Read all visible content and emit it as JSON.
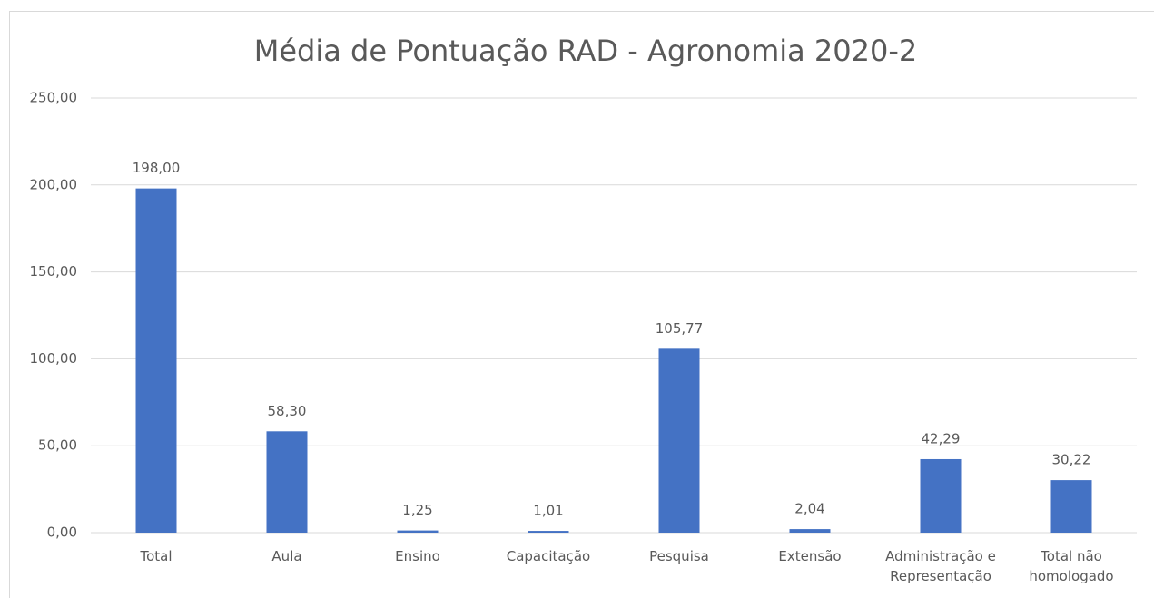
{
  "chart_data": {
    "type": "bar",
    "title": "Média de Pontuação RAD - Agronomia 2020-2",
    "categories": [
      "Total",
      "Aula",
      "Ensino",
      "Capacitação",
      "Pesquisa",
      "Extensão",
      "Administração e Representação",
      "Total não homologado"
    ],
    "values": [
      198.0,
      58.3,
      1.25,
      1.01,
      105.77,
      2.04,
      42.29,
      30.22
    ],
    "value_labels": [
      "198,00",
      "58,30",
      "1,25",
      "1,01",
      "105,77",
      "2,04",
      "42,29",
      "30,22"
    ],
    "color": "#4472c4",
    "ylim": [
      0,
      250
    ],
    "yticks": [
      {
        "value": 0,
        "label": "0,00"
      },
      {
        "value": 50,
        "label": "50,00"
      },
      {
        "value": 100,
        "label": "100,00"
      },
      {
        "value": 150,
        "label": "150,00"
      },
      {
        "value": 200,
        "label": "200,00"
      },
      {
        "value": 250,
        "label": "250,00"
      }
    ],
    "grid": true
  }
}
